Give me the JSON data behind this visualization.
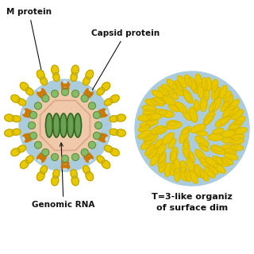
{
  "background_color": "#ffffff",
  "labels": {
    "m_protein": "M protein",
    "capsid_protein": "Capsid protein",
    "genomic_rna": "Genomic RNA",
    "t3_text1": "T=3-like organiz",
    "t3_text2": "of surface dim"
  },
  "colors": {
    "yellow": "#E8C800",
    "yellow_dark": "#B8A000",
    "yellow_mid": "#D4B400",
    "orange": "#CC7700",
    "orange_light": "#E8A030",
    "green": "#88BB66",
    "green_dark": "#558844",
    "light_blue": "#AACCDD",
    "light_blue2": "#C8DDE8",
    "peach": "#F0C8AA",
    "peach_dark": "#D8A888",
    "rna_green": "#559944",
    "rna_dark": "#336622",
    "text_color": "#111111",
    "arrow_color": "#111111"
  },
  "figsize": [
    3.2,
    3.2
  ],
  "dpi": 100
}
